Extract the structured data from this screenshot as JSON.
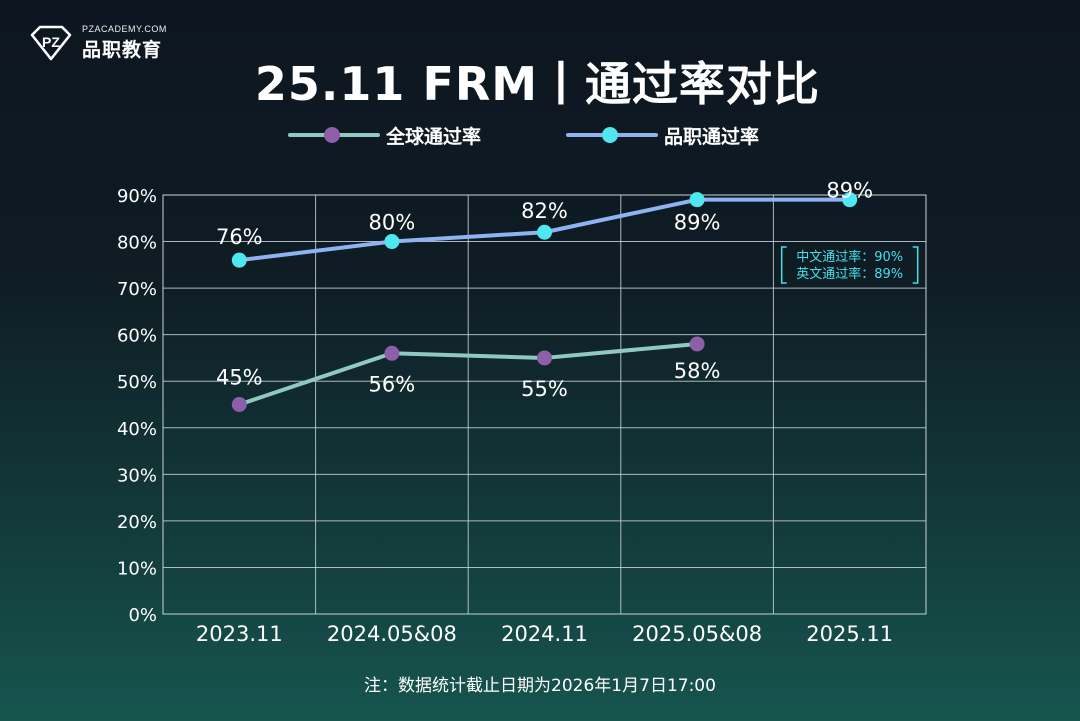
{
  "brand": {
    "sub": "PZACADEMY.COM",
    "name": "品职教育",
    "mark_text": "PZ"
  },
  "title": "25.11 FRM丨通过率对比",
  "footnote": "注：数据统计截止日期为2026年1月7日17:00",
  "colors": {
    "global_line": "#8fc9c0",
    "global_dot": "#8d5fa8",
    "pinzhi_line": "#8fb2f0",
    "pinzhi_dot": "#4fe8f0",
    "annotation": "#44e0ea",
    "grid": "#c9d2d6"
  },
  "chart_data": {
    "type": "line",
    "title": "25.11 FRM丨通过率对比",
    "categories": [
      "2023.11",
      "2024.05&08",
      "2024.11",
      "2025.05&08",
      "2025.11"
    ],
    "y_ticks": [
      "0%",
      "10%",
      "20%",
      "30%",
      "40%",
      "50%",
      "60%",
      "70%",
      "80%",
      "90%"
    ],
    "ylim": [
      0,
      90
    ],
    "grid": true,
    "legend_position": "top-center",
    "series": [
      {
        "name": "全球通过率",
        "values": [
          45,
          56,
          55,
          58,
          null
        ],
        "labels": [
          "45%",
          "56%",
          "55%",
          "58%",
          ""
        ]
      },
      {
        "name": "品职通过率",
        "values": [
          76,
          80,
          82,
          89,
          89
        ],
        "labels": [
          "76%",
          "80%",
          "82%",
          "89%",
          "89%"
        ]
      }
    ],
    "annotation": {
      "category": "2025.11",
      "lines": [
        "中文通过率：90%",
        "英文通过率：89%"
      ]
    }
  }
}
